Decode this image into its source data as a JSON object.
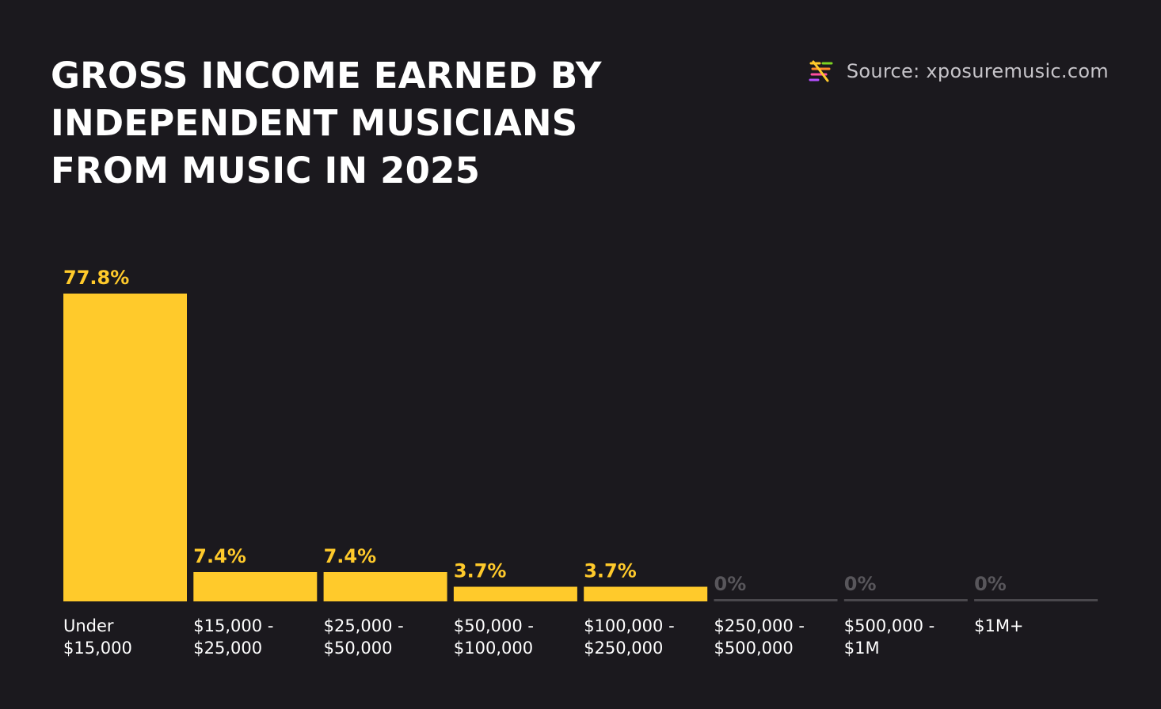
{
  "title_lines": [
    "GROSS INCOME EARNED BY",
    "INDEPENDENT MUSICIANS",
    "FROM MUSIC IN 2025"
  ],
  "source": {
    "text": "Source: xposuremusic.com",
    "logo_icon": "xposure-logo-icon"
  },
  "colors": {
    "background": "#1b191e",
    "bar": "#ffca2b",
    "zero_bar": "#4a484d",
    "zero_label": "#58565b",
    "tick_label": "#ffffff"
  },
  "chart_data": {
    "type": "bar",
    "title": "GROSS INCOME EARNED BY INDEPENDENT MUSICIANS FROM MUSIC IN 2025",
    "xlabel": "",
    "ylabel": "",
    "categories": [
      [
        "Under",
        "$15,000"
      ],
      [
        "$15,000 -",
        "$25,000"
      ],
      [
        "$25,000 -",
        "$50,000"
      ],
      [
        "$50,000 -",
        "$100,000"
      ],
      [
        "$100,000 -",
        "$250,000"
      ],
      [
        "$250,000 -",
        "$500,000"
      ],
      [
        "$500,000 -",
        "$1M"
      ],
      [
        "$1M+"
      ]
    ],
    "values": [
      77.8,
      7.4,
      7.4,
      3.7,
      3.7,
      0,
      0,
      0
    ],
    "value_labels": [
      "77.8%",
      "7.4%",
      "7.4%",
      "3.7%",
      "3.7%",
      "0%",
      "0%",
      "0%"
    ],
    "ylim": [
      0,
      77.8
    ],
    "grid": false,
    "legend": "none"
  }
}
